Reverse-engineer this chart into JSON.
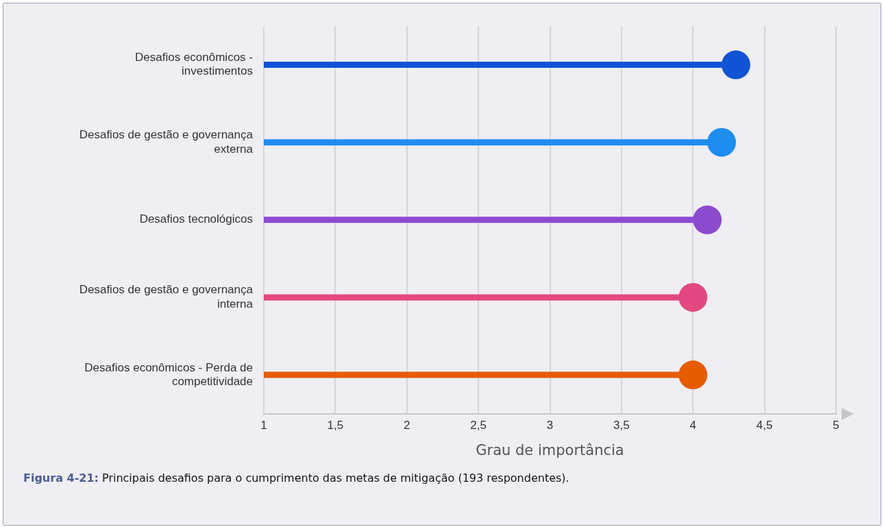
{
  "chart_data": {
    "type": "lollipop",
    "orientation": "horizontal",
    "categories": [
      "Desafios econômicos - investimentos",
      "Desafios de gestão e governança externa",
      "Desafios tecnológicos",
      "Desafios de gestão e governança interna",
      "Desafios econômicos - Perda de competitividade"
    ],
    "values": [
      4.3,
      4.2,
      4.1,
      4.0,
      4.0
    ],
    "colors": [
      "#1053d4",
      "#1f8cf0",
      "#8c4bcf",
      "#e34882",
      "#e65c00"
    ],
    "xlabel": "Grau de importância",
    "xlim": [
      1,
      5
    ],
    "xticks": [
      1,
      {
        "value": 1.5,
        "label": "1,5"
      },
      2,
      {
        "value": 2.5,
        "label": "2,5"
      },
      3,
      {
        "value": 3.5,
        "label": "3,5"
      },
      4,
      {
        "value": 4.5,
        "label": "4,5"
      },
      5
    ],
    "grid": "x",
    "legend": false,
    "marker": "circle",
    "annotations": [
      "Figura 4-21: Principais desafios para o cumprimento das metas de mitigação (193 respondentes)."
    ]
  }
}
